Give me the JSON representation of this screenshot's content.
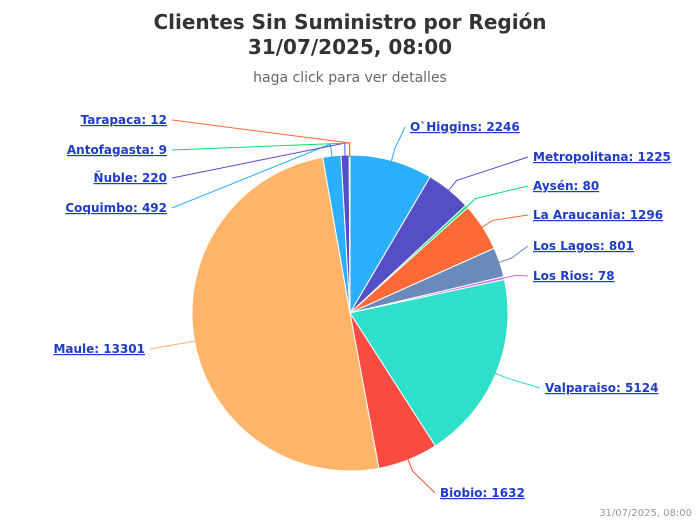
{
  "header": {
    "title_line1": "Clientes Sin Suministro por Región",
    "title_line2": "31/07/2025, 08:00",
    "subtitle": "haga click para ver detalles"
  },
  "footer": {
    "credit": "31/07/2025, 08:00"
  },
  "chart_data": {
    "type": "pie",
    "title": "Clientes Sin Suministro por Región 31/07/2025, 08:00",
    "subtitle": "haga click para ver detalles",
    "slices": [
      {
        "name": "O`Higgins",
        "value": 2246,
        "color": "#2caffe",
        "label": "O`Higgins: 2246"
      },
      {
        "name": "Metropolitana",
        "value": 1225,
        "color": "#544fc5",
        "label": "Metropolitana: 1225"
      },
      {
        "name": "Aysén",
        "value": 80,
        "color": "#00e272",
        "label": "Aysén: 80"
      },
      {
        "name": "La Araucania",
        "value": 1296,
        "color": "#fe6a35",
        "label": "La Araucania: 1296"
      },
      {
        "name": "Los Lagos",
        "value": 801,
        "color": "#6b8abc",
        "label": "Los Lagos: 801"
      },
      {
        "name": "Los Rios",
        "value": 78,
        "color": "#d568fb",
        "label": "Los Rios: 78"
      },
      {
        "name": "Valparaiso",
        "value": 5124,
        "color": "#2ee0ca",
        "label": "Valparaiso: 5124"
      },
      {
        "name": "Biobio",
        "value": 1632,
        "color": "#fa4b42",
        "label": "Biobio: 1632"
      },
      {
        "name": "Maule",
        "value": 13301,
        "color": "#feb56a",
        "label": "Maule: 13301"
      },
      {
        "name": "Coquimbo",
        "value": 492,
        "color": "#2caffe",
        "label": "Coquimbo: 492"
      },
      {
        "name": "Ñuble",
        "value": 220,
        "color": "#544fc5",
        "label": "Ñuble: 220"
      },
      {
        "name": "Antofagasta",
        "value": 9,
        "color": "#00e272",
        "label": "Antofagasta: 9"
      },
      {
        "name": "Tarapaca",
        "value": 12,
        "color": "#fe6a35",
        "label": "Tarapaca: 12"
      }
    ]
  }
}
